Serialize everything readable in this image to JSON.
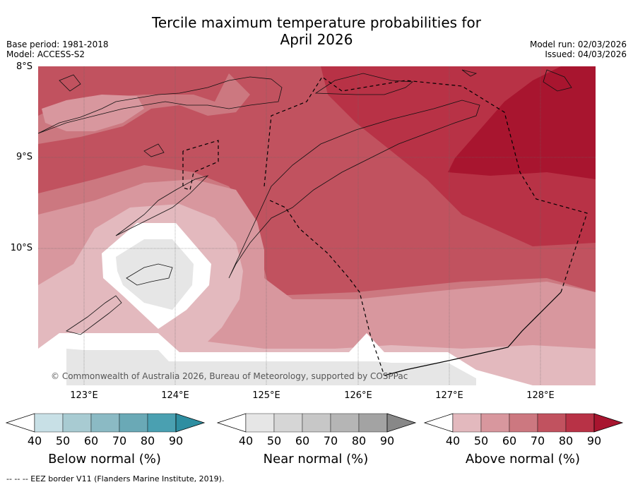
{
  "title_line1": "Tercile maximum temperature probabilities for",
  "title_line2": "April 2026",
  "base_period": "Base period: 1981-2018",
  "model": "Model: ACCESS-S2",
  "model_run": "Model run: 02/03/2026",
  "issued": "Issued: 04/03/2026",
  "lat_labels": [
    "8°S",
    "9°S",
    "10°S"
  ],
  "lon_labels": [
    "123°E",
    "124°E",
    "125°E",
    "126°E",
    "127°E",
    "128°E"
  ],
  "copyright": "© Commonwealth of Australia 2026, Bureau of Meteorology, supported by COSPPac",
  "colorbars": [
    {
      "title": "Below normal (%)",
      "ticks": [
        "40",
        "50",
        "60",
        "70",
        "80",
        "90"
      ],
      "colors": [
        "#ffffff",
        "#c8e0e6",
        "#a8cbd2",
        "#8bbac4",
        "#6aa9b6",
        "#4aa0b1",
        "#2e8ea1"
      ]
    },
    {
      "title": "Near normal (%)",
      "ticks": [
        "40",
        "50",
        "60",
        "70",
        "80",
        "90"
      ],
      "colors": [
        "#ffffff",
        "#e6e6e6",
        "#d6d6d6",
        "#c7c7c7",
        "#b5b5b5",
        "#a3a3a3",
        "#888888"
      ]
    },
    {
      "title": "Above normal (%)",
      "ticks": [
        "40",
        "50",
        "60",
        "70",
        "80",
        "90"
      ],
      "colors": [
        "#ffffff",
        "#e3b9be",
        "#d8979e",
        "#cc7880",
        "#c1525f",
        "#b83246",
        "#a8152f"
      ]
    }
  ],
  "footnote": "--  --  -- EEZ border V11 (Flanders Marine Institute, 2019).",
  "map_colors": {
    "above_40": "#e3b9be",
    "above_50": "#d8979e",
    "above_60": "#cc7880",
    "above_70": "#c1525f",
    "above_80": "#b83246",
    "above_90": "#a8152f",
    "near_40": "#e6e6e6",
    "white": "#ffffff"
  }
}
